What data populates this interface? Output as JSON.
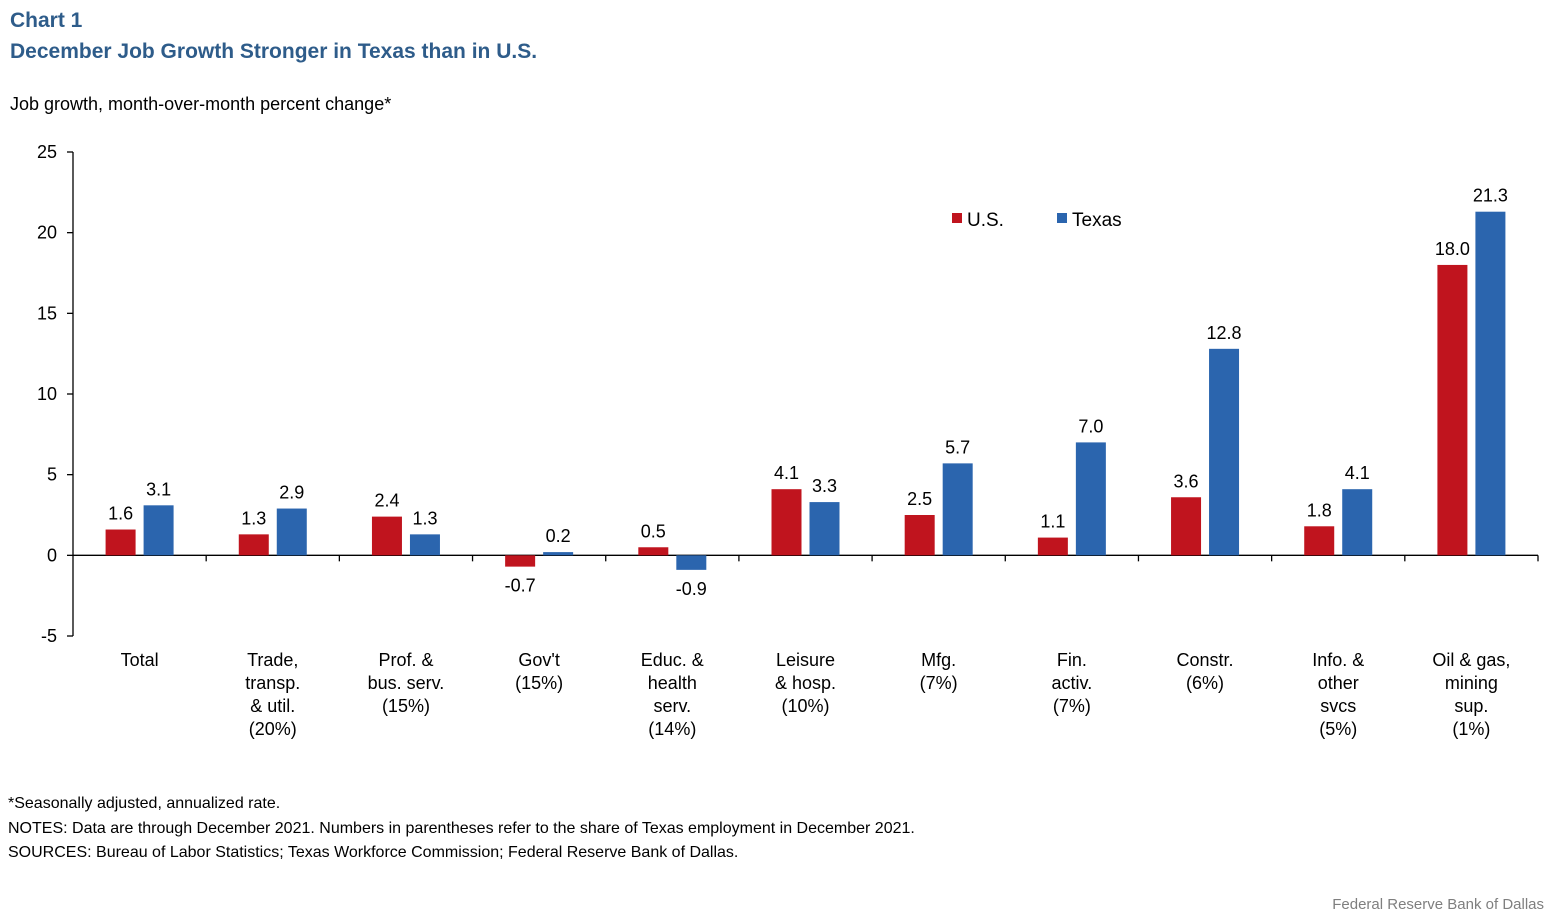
{
  "header": {
    "chart_label": "Chart 1",
    "title": "December Job Growth Stronger in Texas than in U.S."
  },
  "chart_data": {
    "type": "bar",
    "title": "December Job Growth Stronger in Texas than in U.S.",
    "ylabel": "Job growth, month-over-month  percent change*",
    "xlabel": "",
    "ylim": [
      -5,
      25
    ],
    "yticks": [
      -5,
      0,
      5,
      10,
      15,
      20,
      25
    ],
    "legend_position": "top-right",
    "categories": [
      [
        "Total"
      ],
      [
        "Trade,",
        "transp.",
        "& util.",
        "(20%)"
      ],
      [
        "Prof. &",
        "bus. serv.",
        "(15%)"
      ],
      [
        "Gov't",
        "(15%)"
      ],
      [
        "Educ. &",
        "health",
        "serv.",
        "(14%)"
      ],
      [
        "Leisure",
        "& hosp.",
        "(10%)"
      ],
      [
        "Mfg.",
        "(7%)"
      ],
      [
        "Fin.",
        "activ.",
        "(7%)"
      ],
      [
        "Constr.",
        "(6%)"
      ],
      [
        "Info. &",
        "other",
        "svcs",
        "(5%)"
      ],
      [
        "Oil & gas,",
        "mining",
        "sup.",
        "(1%)"
      ]
    ],
    "series": [
      {
        "name": "U.S.",
        "color": "#C0141E",
        "values": [
          1.6,
          1.3,
          2.4,
          -0.7,
          0.5,
          4.1,
          2.5,
          1.1,
          3.6,
          1.8,
          18.0
        ]
      },
      {
        "name": "Texas",
        "color": "#2B65AE",
        "values": [
          3.1,
          2.9,
          1.3,
          0.2,
          -0.9,
          3.3,
          5.7,
          7.0,
          12.8,
          4.1,
          21.3
        ]
      }
    ]
  },
  "footnotes": {
    "note1": "*Seasonally adjusted, annualized rate.",
    "note2": "NOTES: Data are through December 2021. Numbers in parentheses refer to the share of Texas employment in December 2021.",
    "note3": "SOURCES: Bureau of Labor Statistics; Texas Workforce Commission; Federal Reserve Bank of Dallas."
  },
  "credit": "Federal Reserve Bank of Dallas"
}
